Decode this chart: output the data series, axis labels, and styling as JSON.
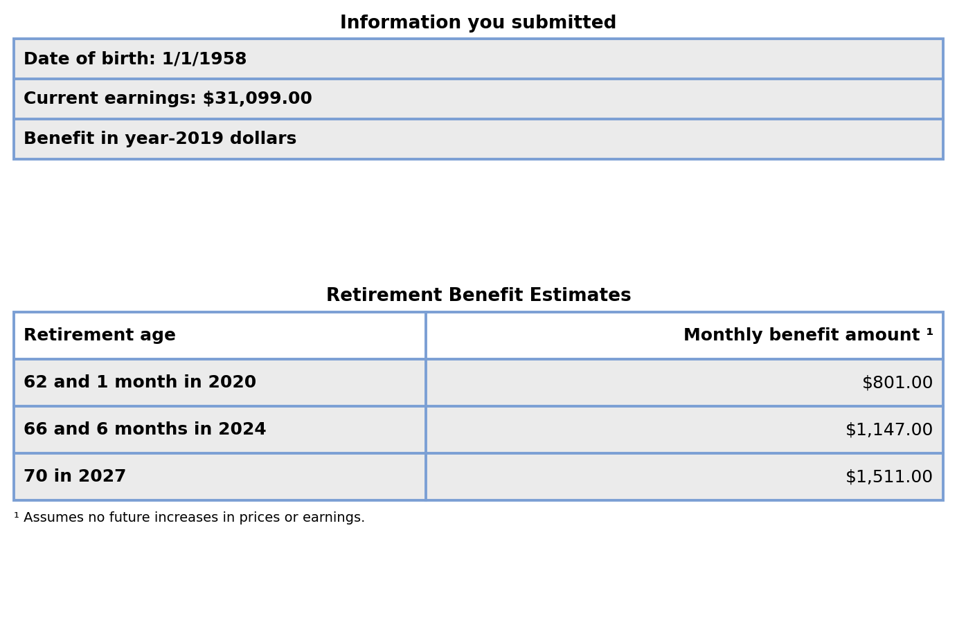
{
  "title1": "Information you submitted",
  "info_rows": [
    "Date of birth: 1/1/1958",
    "Current earnings: $31,099.00",
    "Benefit in year-2019 dollars"
  ],
  "title2": "Retirement Benefit Estimates",
  "table_header": [
    "Retirement age",
    "Monthly benefit amount ¹"
  ],
  "table_rows": [
    [
      "62 and 1 month in 2020",
      "$801.00"
    ],
    [
      "66 and 6 months in 2024",
      "$1,147.00"
    ],
    [
      "70 in 2027",
      "$1,511.00"
    ]
  ],
  "footnote": "¹ Assumes no future increases in prices or earnings.",
  "border_color": "#7B9FD4",
  "bg_color": "#EBEBEB",
  "white": "#FFFFFF",
  "text_color": "#000000",
  "title_fontsize": 19,
  "header_fontsize": 18,
  "body_fontsize": 18
}
